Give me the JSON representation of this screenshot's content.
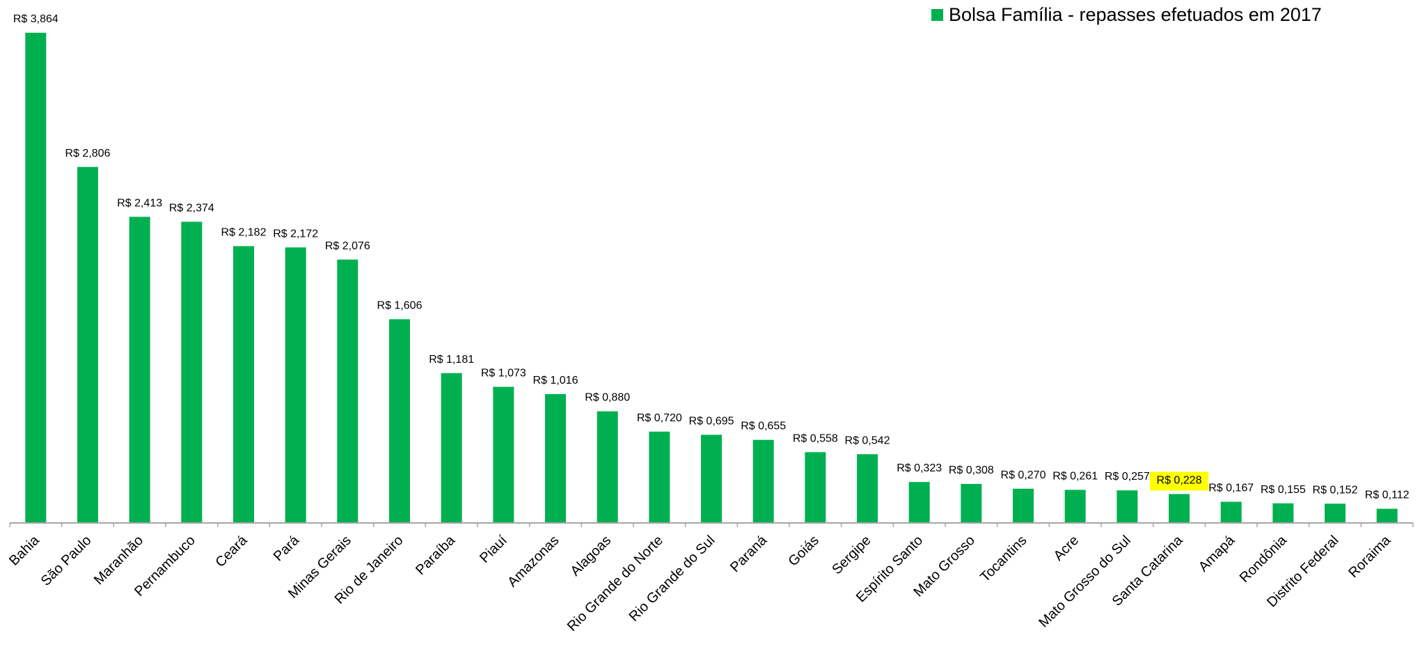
{
  "chart_data": {
    "type": "bar",
    "legend": {
      "label": "Bolsa Família - repasses efetuados em 2017",
      "placement": "top-right"
    },
    "categories": [
      "Bahia",
      "São Paulo",
      "Maranhão",
      "Pernambuco",
      "Ceará",
      "Pará",
      "Minas Gerais",
      "Rio de Janeiro",
      "Paraíba",
      "Piauí",
      "Amazonas",
      "Alagoas",
      "Rio Grande do Norte",
      "Rio Grande do Sul",
      "Paraná",
      "Goiás",
      "Sergipe",
      "Espírito Santo",
      "Mato Grosso",
      "Tocantins",
      "Acre",
      "Mato Grosso do Sul",
      "Santa Catarina",
      "Amapá",
      "Rondônia",
      "Distrito Federal",
      "Roraima"
    ],
    "values": [
      3.864,
      2.806,
      2.413,
      2.374,
      2.182,
      2.172,
      2.076,
      1.606,
      1.181,
      1.073,
      1.016,
      0.88,
      0.72,
      0.695,
      0.655,
      0.558,
      0.542,
      0.323,
      0.308,
      0.27,
      0.261,
      0.257,
      0.228,
      0.167,
      0.155,
      0.152,
      0.112
    ],
    "value_labels": [
      "R$ 3,864",
      "R$ 2,806",
      "R$ 2,413",
      "R$ 2,374",
      "R$ 2,182",
      "R$ 2,172",
      "R$ 2,076",
      "R$ 1,606",
      "R$ 1,181",
      "R$ 1,073",
      "R$ 1,016",
      "R$ 0,880",
      "R$ 0,720",
      "R$ 0,695",
      "R$ 0,655",
      "R$ 0,558",
      "R$ 0,542",
      "R$ 0,323",
      "R$ 0,308",
      "R$ 0,270",
      "R$ 0,261",
      "R$ 0,257",
      "R$ 0,228",
      "R$ 0,167",
      "R$ 0,155",
      "R$ 0,152",
      "R$ 0,112"
    ],
    "highlighted_category": "Santa Catarina",
    "ylim": [
      0,
      3.864
    ],
    "grid": false,
    "colors": {
      "bar": "#00b050",
      "highlight": "#ffff00",
      "axis": "#a6a6a6",
      "text": "#000000"
    }
  }
}
